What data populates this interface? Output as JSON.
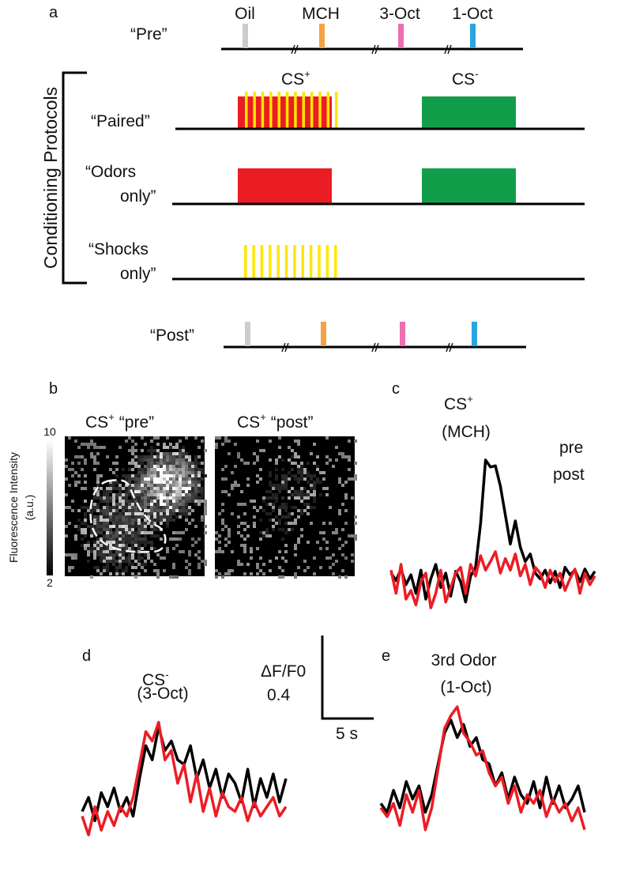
{
  "panel_labels": {
    "a": "a",
    "b": "b",
    "c": "c",
    "d": "d",
    "e": "e"
  },
  "colors": {
    "oil": "#cccccc",
    "mch": "#f5a244",
    "oct3": "#ec6fb0",
    "oct1": "#2aa6df",
    "cs_plus": "#ec1c24",
    "cs_minus": "#119e4a",
    "shock": "#ffe600",
    "pre_trace": "#000000",
    "post_trace": "#ec1c24"
  },
  "panel_a": {
    "odors": [
      "Oil",
      "MCH",
      "3-Oct",
      "1-Oct"
    ],
    "pre_label": "“Pre”",
    "post_label": "“Post”",
    "bracket_label": "Conditioning Protocols",
    "cs_plus": "CS",
    "cs_plus_sup": "+",
    "cs_minus": "CS",
    "cs_minus_sup": "-",
    "protocols": {
      "paired": "“Paired”",
      "odors_only_1": "“Odors",
      "odors_only_2": "only”",
      "shocks_only_1": "“Shocks",
      "shocks_only_2": "only”"
    },
    "shock_count": 12
  },
  "panel_b": {
    "colorbar_max": "10",
    "colorbar_min": "2",
    "colorbar_label_1": "Fluorescence Intensity",
    "colorbar_label_2": "(a.u.)",
    "img_pre_title_1": "CS",
    "img_pre_title_sup": "+",
    "img_pre_title_2": "“pre”",
    "img_post_title_1": "CS",
    "img_post_title_sup": "+",
    "img_post_title_2": "“post”"
  },
  "panel_c": {
    "title_1": "CS",
    "title_sup": "+",
    "title_2": "(MCH)",
    "legend_pre": "pre",
    "legend_post": "post"
  },
  "panel_d": {
    "title_1": "CS",
    "title_sup": "-",
    "title_2": "(3-Oct)"
  },
  "panel_e": {
    "title_1": "3rd Odor",
    "title_2": "(1-Oct)"
  },
  "scale_bar": {
    "y_label": "ΔF/F0",
    "y_value": "0.4",
    "x_label": "5 s"
  },
  "chart_data": [
    {
      "type": "line",
      "title": "CS+ (MCH)",
      "series": [
        {
          "name": "pre",
          "values": [
            0.05,
            -0.08,
            0.12,
            -0.15,
            0.02,
            -0.3,
            0.1,
            -0.4,
            -0.05,
            0.2,
            -0.2,
            0.05,
            -0.35,
            0.08,
            -0.1,
            -0.45,
            0.0,
            0.15,
            0.9,
            2.0,
            1.88,
            1.9,
            1.55,
            1.05,
            0.55,
            0.95,
            0.5,
            0.25,
            0.38,
            0.05,
            -0.05,
            0.1,
            -0.12,
            0.08,
            -0.2,
            0.15,
            0.02,
            0.1,
            -0.1,
            0.12,
            -0.05,
            0.08
          ]
        },
        {
          "name": "post",
          "values": [
            0.1,
            -0.3,
            0.2,
            -0.4,
            -0.25,
            -0.5,
            -0.1,
            0.05,
            -0.55,
            -0.3,
            0.1,
            -0.45,
            -0.2,
            0.05,
            0.15,
            -0.3,
            0.2,
            0.0,
            0.35,
            0.1,
            0.25,
            0.42,
            0.05,
            0.3,
            0.1,
            0.38,
            0.0,
            0.2,
            -0.15,
            0.15,
            0.05,
            -0.2,
            0.1,
            -0.1,
            0.05,
            -0.25,
            -0.05,
            0.12,
            -0.3,
            0.05,
            -0.15,
            0.0
          ]
        }
      ],
      "ylim": [
        -0.7,
        2.3
      ]
    },
    {
      "type": "line",
      "title": "CS- (3-Oct)",
      "series": [
        {
          "name": "pre",
          "values": [
            0.05,
            0.2,
            -0.05,
            0.25,
            0.1,
            0.3,
            0.05,
            0.2,
            0.0,
            0.4,
            0.75,
            0.6,
            0.95,
            0.7,
            0.8,
            0.6,
            0.55,
            0.75,
            0.4,
            0.6,
            0.3,
            0.5,
            0.2,
            0.45,
            0.35,
            0.15,
            0.5,
            0.1,
            0.4,
            0.2,
            0.45,
            0.15,
            0.4
          ]
        },
        {
          "name": "post",
          "values": [
            0.0,
            -0.2,
            0.1,
            -0.15,
            0.05,
            -0.1,
            0.1,
            0.0,
            0.2,
            0.55,
            0.9,
            0.8,
            1.0,
            0.6,
            0.7,
            0.35,
            0.55,
            0.15,
            0.45,
            0.05,
            0.3,
            0.0,
            0.25,
            0.1,
            0.05,
            0.2,
            -0.05,
            0.15,
            0.0,
            0.1,
            0.2,
            0.0,
            0.1
          ]
        }
      ],
      "ylim": [
        -0.4,
        1.2
      ]
    },
    {
      "type": "line",
      "title": "3rd Odor (1-Oct)",
      "series": [
        {
          "name": "pre",
          "values": [
            0.1,
            0.0,
            0.25,
            0.05,
            0.35,
            0.15,
            0.3,
            0.0,
            0.2,
            0.55,
            0.9,
            1.05,
            0.85,
            1.0,
            0.75,
            0.85,
            0.6,
            0.55,
            0.3,
            0.45,
            0.15,
            0.4,
            0.2,
            0.1,
            0.35,
            0.05,
            0.4,
            0.1,
            0.3,
            0.05,
            0.15,
            0.3,
            0.0
          ]
        },
        {
          "name": "post",
          "values": [
            0.05,
            -0.05,
            0.1,
            -0.15,
            0.2,
            0.0,
            0.25,
            -0.2,
            0.05,
            0.5,
            0.95,
            1.1,
            1.2,
            0.9,
            0.8,
            0.65,
            0.7,
            0.45,
            0.3,
            0.4,
            0.1,
            0.3,
            0.0,
            0.2,
            0.1,
            0.25,
            -0.05,
            0.15,
            0.0,
            0.1,
            -0.1,
            0.05,
            -0.2
          ]
        }
      ],
      "ylim": [
        -0.4,
        1.4
      ]
    }
  ]
}
